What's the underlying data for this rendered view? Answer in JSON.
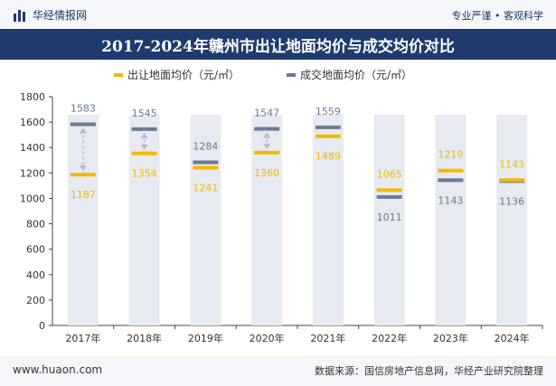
{
  "header": {
    "brand": "华经情报网",
    "tagline": "专业严谨 • 客观科学"
  },
  "chart_data": {
    "type": "bar",
    "title": "2017-2024年赣州市出让地面均价与成交均价对比",
    "categories": [
      "2017年",
      "2018年",
      "2019年",
      "2020年",
      "2021年",
      "2022年",
      "2023年",
      "2024年"
    ],
    "series": [
      {
        "name": "出让地面均价（元/㎡）",
        "color": "#f5b800",
        "values": [
          1187,
          1354,
          1241,
          1360,
          1489,
          1065,
          1219,
          1143
        ]
      },
      {
        "name": "成交地面均价（元/㎡）",
        "color": "#6a7a96",
        "values": [
          1583,
          1545,
          1284,
          1547,
          1559,
          1011,
          1143,
          1136
        ]
      }
    ],
    "ylim": [
      0,
      1800
    ],
    "yticks": [
      0,
      200,
      400,
      600,
      800,
      1000,
      1200,
      1400,
      1600,
      1800
    ],
    "xlabel": "",
    "ylabel": "",
    "background_bar_color": "#e7eaf0"
  },
  "footer": {
    "site": "www.huaon.com",
    "source": "数据来源：国信房地产信息网，华经产业研究院整理"
  }
}
